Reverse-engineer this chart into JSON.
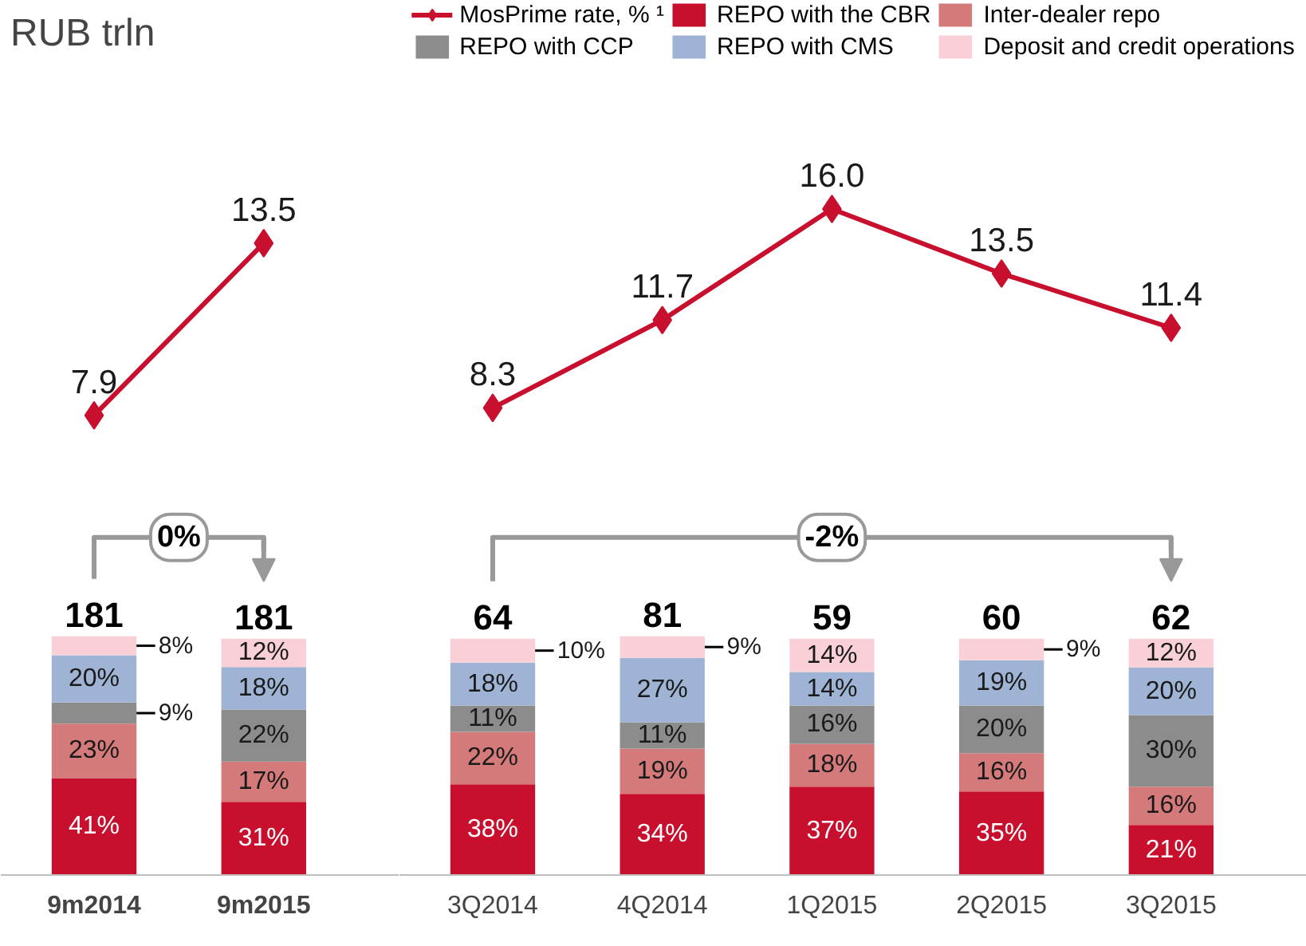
{
  "chart_data": [
    {
      "type": "line",
      "title": "RUB trln",
      "categories": [
        "9m2014",
        "9m2015"
      ],
      "tick_labels": false,
      "marker": "diamond",
      "series": [
        {
          "color": "#c8102e",
          "values": [
            7.9,
            13.5
          ],
          "value_labels": [
            "7.9",
            "13.5"
          ]
        }
      ]
    },
    {
      "type": "bar",
      "stacked": true,
      "categories": [
        "9m2014",
        "9m2015"
      ],
      "tick_labels": "x",
      "annotations": [
        "0%",
        "181",
        "181"
      ],
      "series": [
        {
          "color": "#c8102e",
          "values": [
            41,
            31
          ],
          "value_labels": [
            "41%",
            "31%"
          ]
        },
        {
          "color": "#d47a7a",
          "values": [
            23,
            17
          ],
          "value_labels": [
            "23%",
            "17%"
          ]
        },
        {
          "color": "#8c8c8c",
          "values": [
            9,
            22
          ],
          "value_labels": [
            "9%",
            "22%"
          ]
        },
        {
          "color": "#9fb4d4",
          "values": [
            20,
            18
          ],
          "value_labels": [
            "20%",
            "18%"
          ]
        },
        {
          "color": "#f9d0d8",
          "values": [
            8,
            12
          ],
          "value_labels": [
            "8%",
            "12%"
          ]
        }
      ]
    },
    {
      "type": "line",
      "categories": [
        "3Q2014",
        "4Q2014",
        "1Q2015",
        "2Q2015",
        "3Q2015"
      ],
      "tick_labels": false,
      "marker": "diamond",
      "series": [
        {
          "name": "MosPrime rate, % ¹",
          "color": "#c8102e",
          "values": [
            8.3,
            11.7,
            16.0,
            13.5,
            11.4
          ],
          "value_labels": [
            "8.3",
            "11.7",
            "16.0",
            "13.5",
            "11.4"
          ]
        }
      ]
    },
    {
      "type": "bar",
      "stacked": true,
      "categories": [
        "3Q2014",
        "4Q2014",
        "1Q2015",
        "2Q2015",
        "3Q2015"
      ],
      "tick_labels": "x",
      "legend": "top",
      "annotations": [
        "-2%",
        "64",
        "81",
        "59",
        "60",
        "62"
      ],
      "series": [
        {
          "name": "REPO with the CBR",
          "color": "#c8102e",
          "values": [
            38,
            34,
            37,
            35,
            21
          ],
          "value_labels": [
            "38%",
            "34%",
            "37%",
            "35%",
            "21%"
          ]
        },
        {
          "name": "Inter-dealer repo",
          "color": "#d47a7a",
          "values": [
            22,
            19,
            18,
            16,
            16
          ],
          "value_labels": [
            "22%",
            "19%",
            "18%",
            "16%",
            "16%"
          ]
        },
        {
          "name": "REPO with CCP",
          "color": "#8c8c8c",
          "values": [
            11,
            11,
            16,
            20,
            30
          ],
          "value_labels": [
            "11%",
            "11%",
            "16%",
            "20%",
            "30%"
          ]
        },
        {
          "name": "REPO with CMS",
          "color": "#9fb4d4",
          "values": [
            18,
            27,
            14,
            19,
            20
          ],
          "value_labels": [
            "18%",
            "27%",
            "14%",
            "19%",
            "20%"
          ]
        },
        {
          "name": "Deposit and credit operations",
          "color": "#f9d0d8",
          "values": [
            10,
            9,
            14,
            9,
            12
          ],
          "value_labels": [
            "10%",
            "9%",
            "14%",
            "9%",
            "12%"
          ]
        }
      ]
    }
  ]
}
